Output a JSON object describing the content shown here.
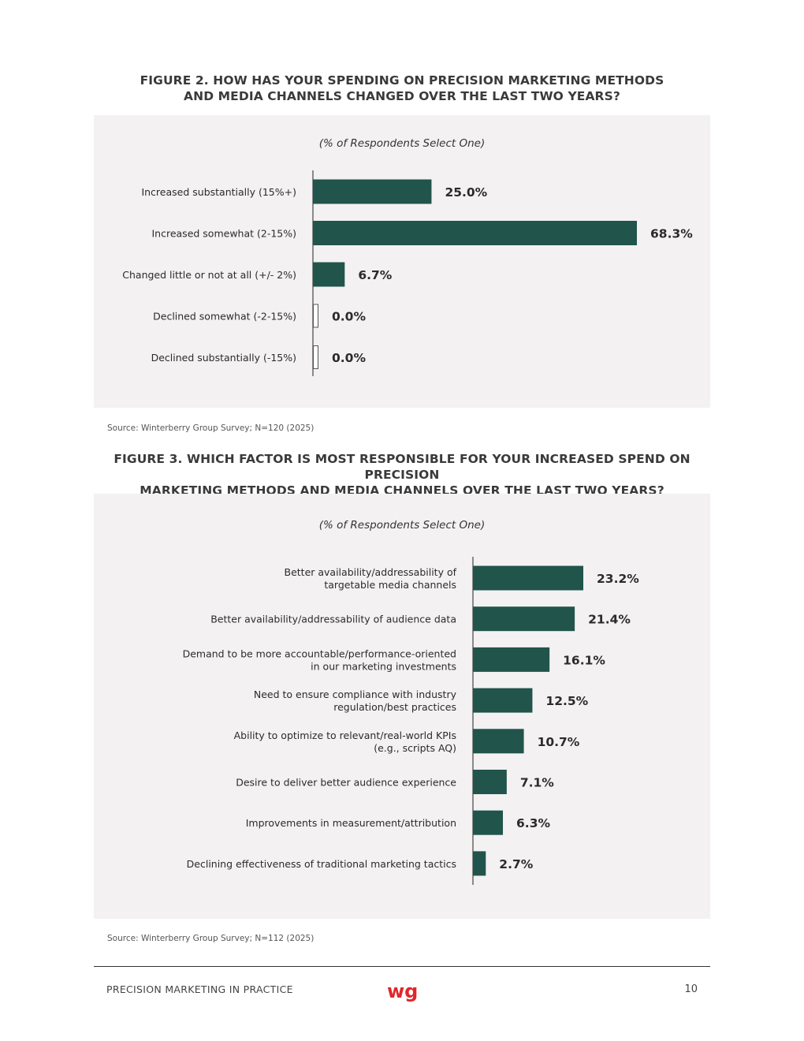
{
  "figure2": {
    "title_line1": "FIGURE 2. HOW HAS YOUR SPENDING ON PRECISION MARKETING METHODS",
    "title_line2": "AND MEDIA CHANNELS CHANGED OVER THE LAST TWO YEARS?",
    "subtitle": "(% of Respondents Select One)",
    "source": "Source: Winterberry Group Survey; N=120 (2025)"
  },
  "figure3": {
    "title_line1": "FIGURE 3. WHICH FACTOR IS MOST RESPONSIBLE FOR YOUR INCREASED SPEND ON PRECISION",
    "title_line2": "MARKETING METHODS AND MEDIA CHANNELS OVER THE LAST TWO YEARS?",
    "subtitle": "(% of Respondents Select One)",
    "source": "Source: Winterberry Group Survey; N=112 (2025)"
  },
  "footer": {
    "left": "PRECISION MARKETING IN PRACTICE",
    "logo_text": "wg",
    "page_number": "10"
  },
  "colors": {
    "bar": "#21544b",
    "panel": "#f3f1f2",
    "logo": "#e0262b"
  },
  "chart_data": [
    {
      "type": "bar",
      "orientation": "horizontal",
      "categories": [
        [
          "Increased substantially (15%+)"
        ],
        [
          "Increased somewhat (2-15%)"
        ],
        [
          "Changed little or not at all (+/- 2%)"
        ],
        [
          "Declined somewhat (-2-15%)"
        ],
        [
          "Declined substantially (-15%)"
        ]
      ],
      "values": [
        25.0,
        68.3,
        6.7,
        0.0,
        0.0
      ],
      "value_labels": [
        "25.0%",
        "68.3%",
        "6.7%",
        "0.0%",
        "0.0%"
      ],
      "xlim": [
        0,
        68.3
      ],
      "grid": false,
      "legend": "none"
    },
    {
      "type": "bar",
      "orientation": "horizontal",
      "categories": [
        [
          "Better availability/addressability of",
          "targetable media channels"
        ],
        [
          "Better availability/addressability of audience data"
        ],
        [
          "Demand to be more accountable/performance-oriented",
          "in our marketing investments"
        ],
        [
          "Need to ensure compliance with industry",
          "regulation/best practices"
        ],
        [
          "Ability to optimize to relevant/real-world KPIs",
          "(e.g., scripts AQ)"
        ],
        [
          "Desire to deliver better audience experience"
        ],
        [
          "Improvements in measurement/attribution"
        ],
        [
          "Declining effectiveness of traditional marketing tactics"
        ]
      ],
      "values": [
        23.2,
        21.4,
        16.1,
        12.5,
        10.7,
        7.1,
        6.3,
        2.7
      ],
      "value_labels": [
        "23.2%",
        "21.4%",
        "16.1%",
        "12.5%",
        "10.7%",
        "7.1%",
        "6.3%",
        "2.7%"
      ],
      "xlim": [
        0,
        23.2
      ],
      "grid": false,
      "legend": "none"
    }
  ]
}
